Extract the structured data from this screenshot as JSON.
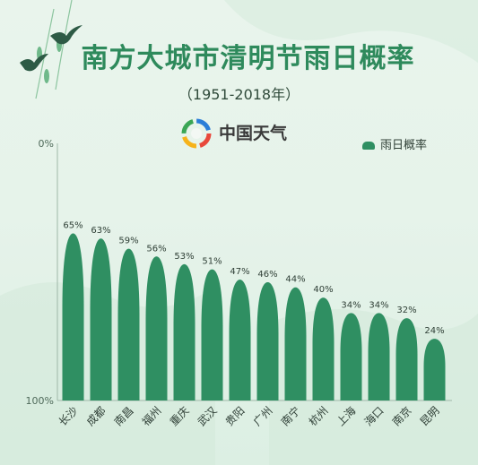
{
  "header": {
    "title": "南方大城市清明节雨日概率",
    "subtitle": "（1951-2018年）",
    "brand": "中国天气"
  },
  "legend": {
    "label": "雨日概率"
  },
  "colors": {
    "bar": "#2f8f62",
    "accent": "#2e8a5c"
  },
  "chart_data": {
    "type": "bar",
    "title": "南方大城市清明节雨日概率",
    "subtitle": "（1951-2018年）",
    "categories": [
      "长沙",
      "成都",
      "南昌",
      "福州",
      "重庆",
      "武汉",
      "贵阳",
      "广州",
      "南宁",
      "杭州",
      "上海",
      "海口",
      "南京",
      "昆明"
    ],
    "series": [
      {
        "name": "雨日概率",
        "values": [
          65,
          63,
          59,
          56,
          53,
          51,
          47,
          46,
          44,
          40,
          34,
          34,
          32,
          24
        ],
        "labels": [
          "65%",
          "63%",
          "59%",
          "56%",
          "53%",
          "51%",
          "47%",
          "46%",
          "44%",
          "40%",
          "34%",
          "34%",
          "32%",
          "24%"
        ]
      }
    ],
    "ylim": [
      0,
      100
    ],
    "y_ticks": [
      "0%",
      "100%"
    ],
    "legend_position": "top-right",
    "grid": false
  }
}
